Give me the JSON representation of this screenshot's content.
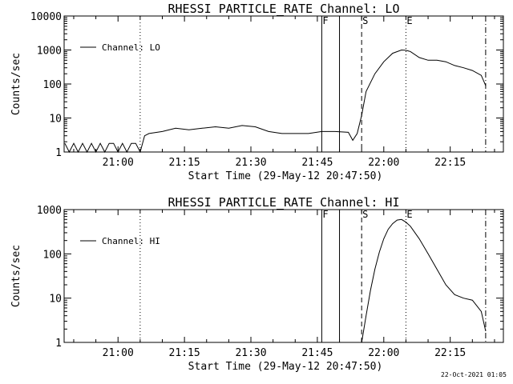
{
  "chart_data": [
    {
      "type": "line",
      "title": "RHESSI PARTICLE_RATE Channel: LO",
      "xlabel": "Start Time (29-May-12 20:47:50)",
      "ylabel": "Counts/sec",
      "yscale": "log",
      "ylim": [
        1,
        10000
      ],
      "x_ticks": [
        "21:00",
        "21:15",
        "21:30",
        "21:45",
        "22:00",
        "22:15"
      ],
      "y_ticks": [
        "1",
        "10",
        "100",
        "1000",
        "10000"
      ],
      "legend": "top-left",
      "series": [
        {
          "name": "Channel: LO",
          "x": [
            "20:48",
            "20:49",
            "20:50",
            "20:51",
            "20:52",
            "20:53",
            "20:54",
            "20:55",
            "20:56",
            "20:57",
            "20:58",
            "20:59",
            "21:00",
            "21:01",
            "21:02",
            "21:03",
            "21:04",
            "21:05",
            "21:06",
            "21:07",
            "21:10",
            "21:13",
            "21:16",
            "21:19",
            "21:22",
            "21:25",
            "21:28",
            "21:31",
            "21:34",
            "21:37",
            "21:40",
            "21:43",
            "21:46",
            "21:49",
            "21:52",
            "21:53",
            "21:54",
            "21:55",
            "21:56",
            "21:58",
            "22:00",
            "22:02",
            "22:04",
            "22:05",
            "22:06",
            "22:08",
            "22:10",
            "22:12",
            "22:14",
            "22:16",
            "22:18",
            "22:20",
            "22:22",
            "22:23"
          ],
          "values": [
            1.8,
            1,
            1.8,
            1,
            1.8,
            1,
            1.8,
            1,
            1.8,
            1,
            1.8,
            1.8,
            1,
            1.8,
            1,
            1.8,
            1.8,
            1,
            3,
            3.5,
            4,
            5,
            4.5,
            5,
            5.5,
            5,
            6,
            5.5,
            4,
            3.5,
            3.5,
            3.5,
            4,
            4,
            3.8,
            2.2,
            3.5,
            12,
            60,
            200,
            450,
            800,
            1000,
            980,
            900,
            600,
            500,
            500,
            450,
            350,
            300,
            250,
            180,
            90
          ]
        }
      ],
      "markers": [
        {
          "label": "F",
          "x": "21:46",
          "style": "solid"
        },
        {
          "label": "",
          "x": "21:50",
          "style": "solid"
        },
        {
          "label": "S",
          "x": "21:55",
          "style": "dashed"
        },
        {
          "label": "E",
          "x": "22:05",
          "style": "dotted"
        },
        {
          "label": "",
          "x": "21:05",
          "style": "dotted"
        },
        {
          "label": "",
          "x": "22:23",
          "style": "dashdot"
        }
      ]
    },
    {
      "type": "line",
      "title": "RHESSI PARTICLE_RATE Channel: HI",
      "xlabel": "Start Time (29-May-12 20:47:50)",
      "ylabel": "Counts/sec",
      "yscale": "log",
      "ylim": [
        1,
        1000
      ],
      "x_ticks": [
        "21:00",
        "21:15",
        "21:30",
        "21:45",
        "22:00",
        "22:15"
      ],
      "y_ticks": [
        "1",
        "10",
        "100",
        "1000"
      ],
      "legend": "top-left",
      "series": [
        {
          "name": "Channel: HI",
          "x": [
            "21:55",
            "21:56",
            "21:57",
            "21:58",
            "21:59",
            "22:00",
            "22:01",
            "22:02",
            "22:03",
            "22:04",
            "22:05",
            "22:06",
            "22:08",
            "22:10",
            "22:12",
            "22:14",
            "22:16",
            "22:18",
            "22:20",
            "22:22",
            "22:23"
          ],
          "values": [
            1,
            4,
            15,
            45,
            110,
            220,
            360,
            480,
            580,
            600,
            520,
            420,
            220,
            100,
            45,
            20,
            12,
            10,
            9,
            5,
            1.8
          ]
        }
      ],
      "markers": [
        {
          "label": "F",
          "x": "21:46",
          "style": "solid"
        },
        {
          "label": "",
          "x": "21:50",
          "style": "solid"
        },
        {
          "label": "S",
          "x": "21:55",
          "style": "dashed"
        },
        {
          "label": "E",
          "x": "22:05",
          "style": "dotted"
        },
        {
          "label": "",
          "x": "21:05",
          "style": "dotted"
        },
        {
          "label": "",
          "x": "22:23",
          "style": "dashdot"
        }
      ]
    }
  ],
  "footer": {
    "timestamp": "22-Oct-2021 01:05"
  }
}
